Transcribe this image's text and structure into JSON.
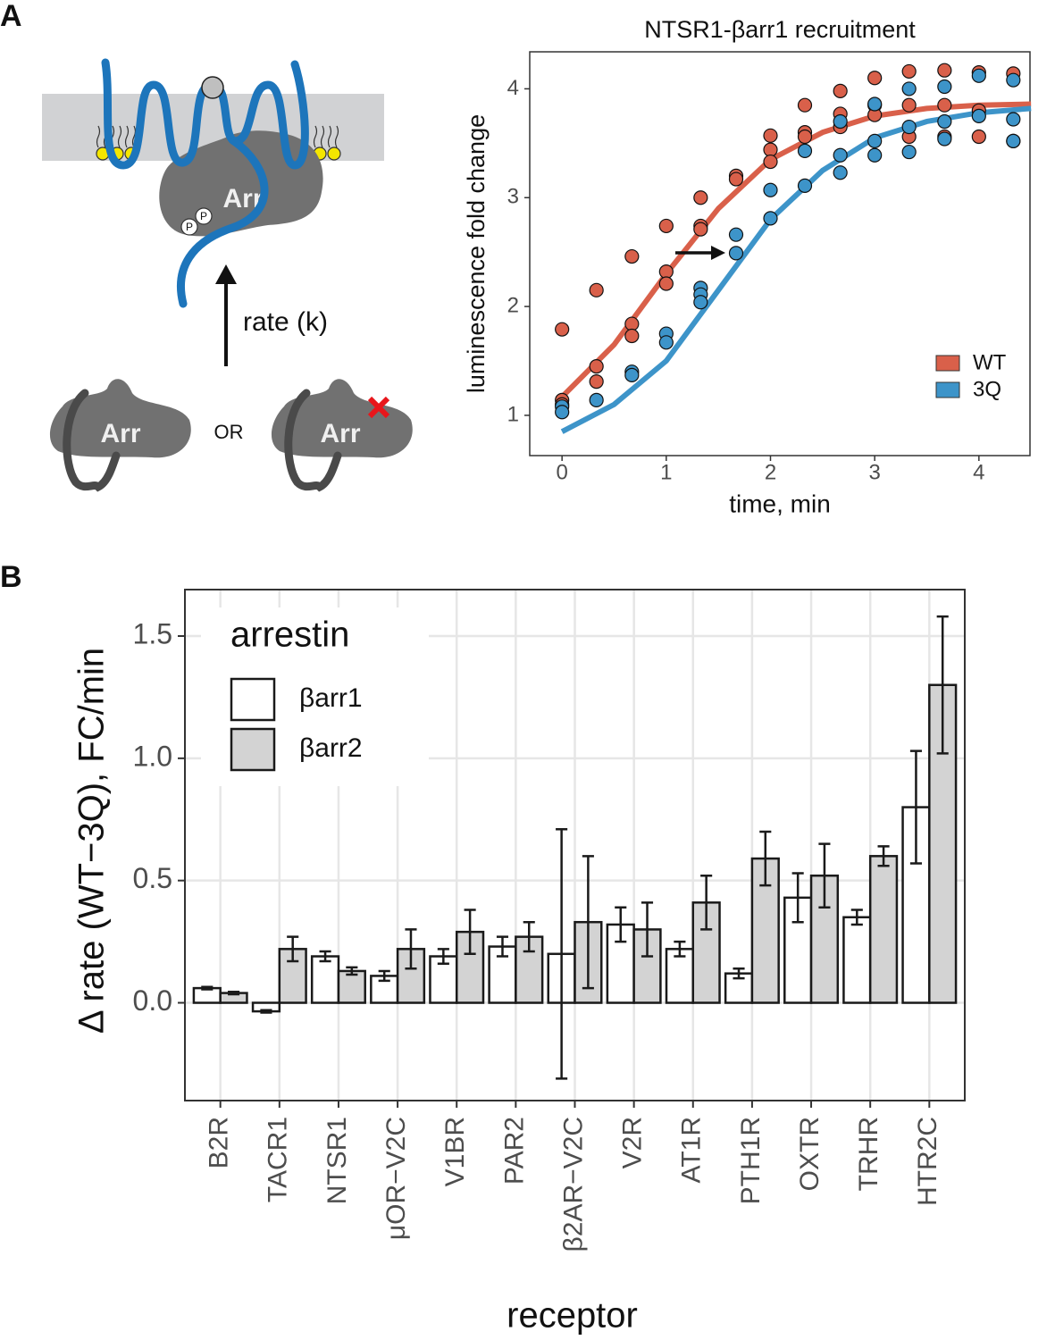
{
  "panel_labels": [
    "A",
    "B"
  ],
  "diagram": {
    "bound_label": "Arr",
    "phospho": [
      "P",
      "P"
    ],
    "arrow_label": "rate (k)",
    "free_labels": [
      "Arr",
      "Arr"
    ],
    "or": "OR"
  },
  "chart_data": [
    {
      "type": "scatter",
      "title": "NTSR1-βarr1 recruitment",
      "xlabel": "time, min",
      "ylabel": "luminescence fold change",
      "xlim": [
        -0.31,
        4.49
      ],
      "ylim": [
        0.63,
        4.34
      ],
      "xticks": [
        0,
        1,
        2,
        3,
        4
      ],
      "yticks": [
        1,
        2,
        3,
        4
      ],
      "grid": false,
      "legend": "bottom-right",
      "series": [
        {
          "name": "WT",
          "color": "#d9604a",
          "x": [
            0,
            0,
            0,
            0.33,
            0.33,
            0.33,
            0.67,
            0.67,
            0.67,
            1,
            1,
            1,
            1.33,
            1.33,
            1.33,
            1.67,
            1.67,
            2,
            2,
            2,
            2.33,
            2.33,
            2.33,
            2.67,
            2.67,
            2.67,
            3,
            3,
            3,
            3.33,
            3.33,
            3.33,
            3.67,
            3.67,
            3.67,
            4,
            4,
            4,
            4.33,
            4.33
          ],
          "values": [
            1.79,
            1.14,
            1.1,
            2.15,
            1.45,
            1.31,
            2.46,
            1.84,
            1.73,
            2.74,
            2.32,
            2.21,
            3.0,
            2.74,
            2.71,
            3.2,
            3.17,
            3.57,
            3.44,
            3.33,
            3.85,
            3.6,
            3.56,
            3.98,
            3.77,
            3.65,
            4.1,
            3.85,
            3.76,
            4.16,
            3.85,
            3.56,
            4.17,
            3.85,
            3.56,
            4.15,
            3.8,
            3.56,
            4.14,
            3.52
          ]
        },
        {
          "name": "3Q",
          "color": "#3d94c9",
          "x": [
            0,
            0,
            0.33,
            0.67,
            0.67,
            1,
            1,
            1.33,
            1.33,
            1.33,
            1.67,
            1.67,
            2,
            2,
            2.33,
            2.33,
            2.67,
            2.67,
            2.67,
            3,
            3,
            3,
            3.33,
            3.33,
            3.33,
            3.67,
            3.67,
            3.67,
            4,
            4,
            4.33,
            4.33,
            4.33
          ],
          "values": [
            1.08,
            1.03,
            1.14,
            1.4,
            1.37,
            1.75,
            1.67,
            2.17,
            2.11,
            2.04,
            2.66,
            2.49,
            3.07,
            2.81,
            3.43,
            3.11,
            3.7,
            3.39,
            3.23,
            3.86,
            3.52,
            3.39,
            4.0,
            3.65,
            3.42,
            4.02,
            3.7,
            3.54,
            4.12,
            3.75,
            4.08,
            3.72,
            3.52
          ]
        }
      ],
      "fits": [
        {
          "color": "#d9604a",
          "x": [
            0,
            0.5,
            1,
            1.5,
            2,
            2.5,
            3,
            3.5,
            4,
            4.5
          ],
          "values": [
            1.17,
            1.65,
            2.3,
            2.9,
            3.35,
            3.6,
            3.75,
            3.82,
            3.85,
            3.86
          ]
        },
        {
          "color": "#3d94c9",
          "x": [
            0,
            0.5,
            1,
            1.5,
            2,
            2.5,
            3,
            3.5,
            4,
            4.5
          ],
          "values": [
            0.85,
            1.1,
            1.5,
            2.15,
            2.8,
            3.25,
            3.55,
            3.7,
            3.78,
            3.82
          ]
        }
      ]
    },
    {
      "type": "bar",
      "xlabel": "receptor",
      "ylabel": "Δ rate (WT−3Q), FC/min",
      "categories": [
        "B2R",
        "TACR1",
        "NTSR1",
        "μOR−V2C",
        "V1BR",
        "PAR2",
        "β2AR−V2C",
        "V2R",
        "AT1R",
        "PTH1R",
        "OXTR",
        "TRHR",
        "HTR2C"
      ],
      "ylim": [
        -0.4,
        1.69
      ],
      "yticks": [
        {
          "value": 0,
          "label": "0.0"
        },
        0.5,
        {
          "value": 1,
          "label": "1.0"
        },
        1.5
      ],
      "grid": true,
      "legend": "top-left",
      "legend_title": "arrestin",
      "series": [
        {
          "name": "βarr1",
          "color": "#ffffff",
          "values": [
            0.06,
            -0.035,
            0.19,
            0.11,
            0.19,
            0.23,
            0.2,
            0.32,
            0.22,
            0.12,
            0.43,
            0.35,
            0.8
          ],
          "errors": [
            0.005,
            0.005,
            0.02,
            0.02,
            0.03,
            0.04,
            0.51,
            0.07,
            0.03,
            0.02,
            0.1,
            0.03,
            0.23
          ]
        },
        {
          "name": "βarr2",
          "color": "#d3d3d3",
          "values": [
            0.04,
            0.22,
            0.13,
            0.22,
            0.29,
            0.27,
            0.33,
            0.3,
            0.41,
            0.59,
            0.52,
            0.6,
            1.3
          ],
          "errors": [
            0.005,
            0.05,
            0.015,
            0.08,
            0.09,
            0.06,
            0.27,
            0.11,
            0.11,
            0.11,
            0.13,
            0.04,
            0.28
          ]
        }
      ]
    }
  ]
}
